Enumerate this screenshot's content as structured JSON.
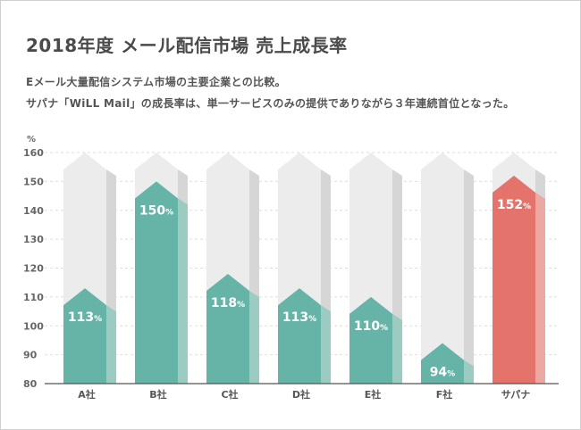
{
  "header": {
    "title": "2018年度 メール配信市場 売上成長率",
    "subtitle_line1": "Eメール大量配信システム市場の主要企業との比較。",
    "subtitle_line2": "サパナ「WiLL Mail」の成長率は、単一サービスのみの提供でありながら３年連続首位となった。"
  },
  "colors": {
    "teal": "#66b3a7",
    "teal_side": "#9ccbc2",
    "highlight": "#e4736b",
    "highlight_side": "#eca8a2",
    "track": "#ececec",
    "track_side": "#d6d6d6",
    "axis_text": "#666666"
  },
  "chart_data": {
    "type": "bar",
    "title": "2018年度 メール配信市場 売上成長率",
    "ylabel": "%",
    "unit_suffix": "%",
    "ylim": [
      80,
      160
    ],
    "yticks": [
      80,
      90,
      100,
      110,
      120,
      130,
      140,
      150,
      160
    ],
    "grid": true,
    "categories": [
      "A社",
      "B社",
      "C社",
      "D社",
      "E社",
      "F社",
      "サパナ"
    ],
    "values": [
      113,
      150,
      118,
      113,
      110,
      94,
      152
    ],
    "highlight_index": 6
  }
}
